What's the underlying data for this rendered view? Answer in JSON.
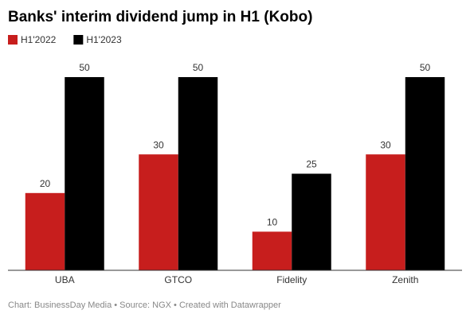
{
  "chart_data": {
    "type": "bar",
    "title": "Banks' interim dividend jump in H1 (Kobo)",
    "categories": [
      "UBA",
      "GTCO",
      "Fidelity",
      "Zenith"
    ],
    "series": [
      {
        "name": "H1'2022",
        "color": "#c71e1d",
        "values": [
          20,
          30,
          10,
          30
        ]
      },
      {
        "name": "H1'2023",
        "color": "#000000",
        "values": [
          50,
          50,
          25,
          50
        ]
      }
    ],
    "footer": "Chart: BusinessDay Media • Source: NGX • Created with Datawrapper"
  }
}
